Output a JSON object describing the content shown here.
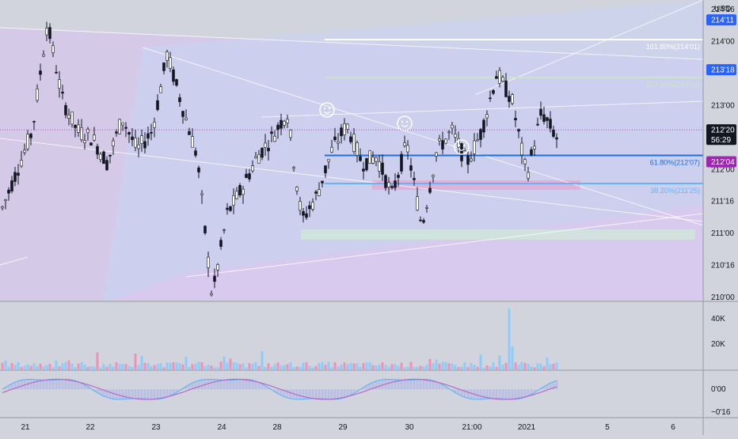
{
  "currency": "USD",
  "price_axis": {
    "ticks": [
      "214'00",
      "213'00",
      "212'00",
      "211'16",
      "211'00",
      "210'16",
      "210'00"
    ],
    "badges": [
      {
        "label": "214'11",
        "bg": "#2962ff",
        "fg": "#ffffff",
        "price": 214.34
      },
      {
        "label": "213'18",
        "bg": "#2962ff",
        "fg": "#ffffff",
        "price": 213.56
      },
      {
        "label": "212'20",
        "bg": "#131722",
        "fg": "#ffffff",
        "price": 212.62
      },
      {
        "label": "56:29",
        "bg": "#131722",
        "fg": "#ffffff",
        "price": 212.47
      },
      {
        "label": "212'04",
        "bg": "#9c27b0",
        "fg": "#ffffff",
        "price": 212.12
      }
    ],
    "top_label": "214'16"
  },
  "volume_axis": {
    "ticks": [
      "40K",
      "20K"
    ]
  },
  "macd_axis": {
    "ticks": [
      "0'00",
      "−0'16"
    ]
  },
  "time_axis": {
    "labels": [
      "21",
      "22",
      "23",
      "24",
      "28",
      "29",
      "30",
      "21:00",
      "2021",
      "5",
      "6"
    ]
  },
  "fib_levels": [
    {
      "label": "161.80%(214'01)",
      "price": 214.03,
      "color": "#ffffff"
    },
    {
      "label": "127.20%(213'14)",
      "price": 213.44,
      "color": "#c8e6c9"
    },
    {
      "label": "61.80%(212'07)",
      "price": 212.22,
      "color": "#1e6fd9"
    },
    {
      "label": "38.20%(211'25)",
      "price": 211.78,
      "color": "#64b5f6"
    }
  ],
  "colors": {
    "background": "#d1d4dc",
    "up": "#131722",
    "down": "#131722",
    "purple_fill": "#ce93d8",
    "blue_fill": "#bbdefb",
    "volume_up": "#90caf9",
    "volume_down": "#f48fb1",
    "macd_line": "#64b5f6",
    "signal_line": "#ba68c8"
  },
  "chart_data": {
    "type": "candlestick",
    "y_price_range": [
      209.95,
      214.65
    ],
    "volume_range": [
      0,
      50000
    ],
    "macd_range": [
      -0.6,
      0.4
    ],
    "price_markers": [
      "smiley-icon",
      "smiley-icon",
      "smiley-icon"
    ]
  }
}
